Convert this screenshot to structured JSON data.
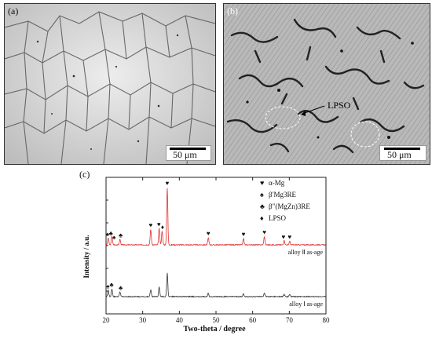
{
  "panel_a": {
    "label": "(a)",
    "scale": "50 μm"
  },
  "panel_b": {
    "label": "(b)",
    "scale": "50 μm",
    "annotation": "LPSO"
  },
  "panel_c": {
    "label": "(c)",
    "chart_data": {
      "type": "line",
      "xlabel": "Two-theta / degree",
      "ylabel": "Intensity / a.u.",
      "xlim": [
        20,
        80
      ],
      "xticks": [
        20,
        30,
        40,
        50,
        60,
        70,
        80
      ],
      "legend_placement": "top-right",
      "legend": [
        {
          "symbol": "heart",
          "text": "α-Mg"
        },
        {
          "symbol": "spade",
          "text": "β′Mg3RE"
        },
        {
          "symbol": "club",
          "text": "β″(MgZn)3RE"
        },
        {
          "symbol": "diamond",
          "text": "LPSO"
        }
      ],
      "series": [
        {
          "name": "alloy Ⅱ as-age",
          "color": "#e03030",
          "peaks": [
            {
              "x": 20.6,
              "h": 0.1
            },
            {
              "x": 21.6,
              "h": 0.13
            },
            {
              "x": 23.8,
              "h": 0.08
            },
            {
              "x": 32.2,
              "h": 0.22
            },
            {
              "x": 34.5,
              "h": 0.24
            },
            {
              "x": 35.3,
              "h": 0.2
            },
            {
              "x": 36.7,
              "h": 0.83
            },
            {
              "x": 47.9,
              "h": 0.1
            },
            {
              "x": 57.5,
              "h": 0.09
            },
            {
              "x": 63.2,
              "h": 0.12
            },
            {
              "x": 68.6,
              "h": 0.06
            },
            {
              "x": 70.1,
              "h": 0.05
            }
          ],
          "markers": [
            {
              "x": 20.4,
              "symbol": "spade"
            },
            {
              "x": 21.3,
              "symbol": "club"
            },
            {
              "x": 22.2,
              "symbol": "spade"
            },
            {
              "x": 24.0,
              "symbol": "club"
            },
            {
              "x": 32.2,
              "symbol": "heart"
            },
            {
              "x": 34.4,
              "symbol": "heart"
            },
            {
              "x": 35.4,
              "symbol": "diamond"
            },
            {
              "x": 36.7,
              "symbol": "heart"
            },
            {
              "x": 47.9,
              "symbol": "heart"
            },
            {
              "x": 57.5,
              "symbol": "heart"
            },
            {
              "x": 63.2,
              "symbol": "heart"
            },
            {
              "x": 68.4,
              "symbol": "heart"
            },
            {
              "x": 70.1,
              "symbol": "heart"
            }
          ]
        },
        {
          "name": "alloy Ⅰ as-age",
          "color": "#333333",
          "peaks": [
            {
              "x": 20.6,
              "h": 0.09
            },
            {
              "x": 21.6,
              "h": 0.11
            },
            {
              "x": 23.8,
              "h": 0.07
            },
            {
              "x": 32.2,
              "h": 0.1
            },
            {
              "x": 34.5,
              "h": 0.14
            },
            {
              "x": 36.7,
              "h": 0.34
            },
            {
              "x": 47.9,
              "h": 0.05
            },
            {
              "x": 57.5,
              "h": 0.04
            },
            {
              "x": 63.2,
              "h": 0.05
            },
            {
              "x": 68.6,
              "h": 0.03
            },
            {
              "x": 70.1,
              "h": 0.03
            }
          ],
          "markers": [
            {
              "x": 20.5,
              "symbol": "spade"
            },
            {
              "x": 21.5,
              "symbol": "club"
            },
            {
              "x": 24.0,
              "symbol": "club"
            }
          ]
        }
      ]
    }
  }
}
